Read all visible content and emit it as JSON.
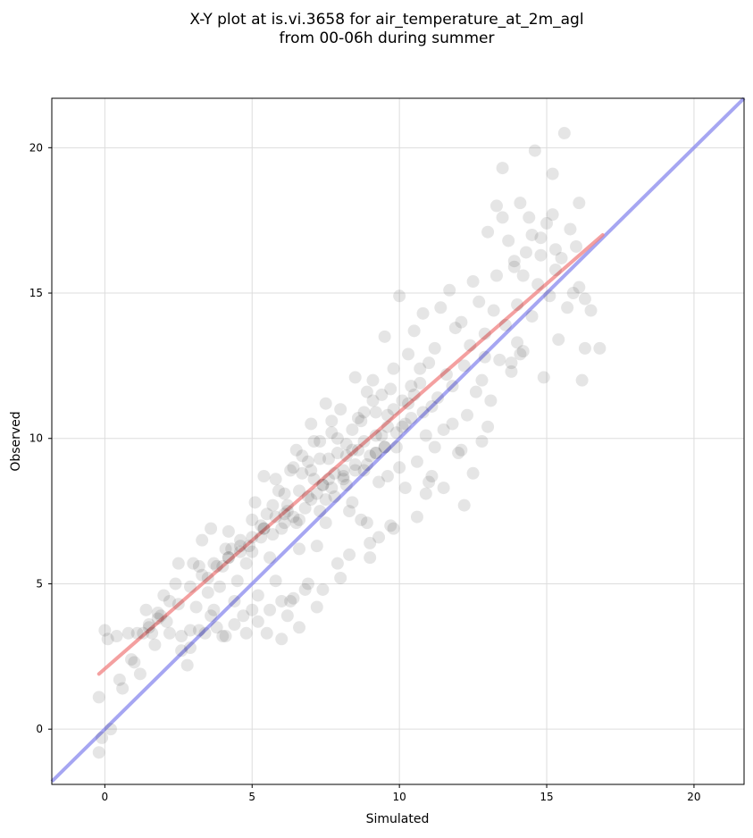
{
  "chart_data": {
    "type": "scatter",
    "title_line1": "X-Y plot at is.vi.3658 for air_temperature_at_2m_agl",
    "title_line2": "from 00-06h during summer",
    "xlabel": "Simulated",
    "ylabel": "Observed",
    "xlim": [
      -1.8,
      21.7
    ],
    "ylim": [
      -1.9,
      21.7
    ],
    "xticks": [
      0,
      5,
      10,
      15,
      20
    ],
    "yticks": [
      0,
      5,
      10,
      15,
      20
    ],
    "xtick_labels": [
      "0",
      "5",
      "10",
      "15",
      "20"
    ],
    "ytick_labels": [
      "0",
      "5",
      "10",
      "15",
      "20"
    ],
    "grid": true,
    "legend": "none",
    "colors": {
      "points": "#000000",
      "fit_line": "#f08080",
      "identity_line": "#8888ee",
      "grid": "#dddddd"
    },
    "series": [
      {
        "kind": "points",
        "x": [
          -0.2,
          -0.2,
          -0.1,
          0.0,
          0.1,
          0.2,
          0.4,
          0.5,
          0.6,
          0.8,
          0.9,
          1.0,
          1.1,
          1.2,
          1.3,
          1.4,
          1.5,
          1.6,
          1.7,
          1.8,
          1.9,
          2.0,
          2.1,
          2.2,
          2.4,
          2.5,
          2.6,
          2.8,
          2.9,
          3.0,
          3.1,
          3.2,
          3.3,
          3.4,
          3.5,
          3.6,
          3.7,
          3.8,
          3.9,
          4.0,
          4.1,
          4.2,
          4.3,
          4.4,
          4.5,
          4.6,
          4.7,
          4.8,
          4.9,
          5.0,
          5.0,
          5.1,
          5.2,
          5.3,
          5.4,
          5.5,
          5.5,
          5.6,
          5.7,
          5.8,
          5.9,
          6.0,
          6.0,
          6.1,
          6.2,
          6.3,
          6.3,
          6.4,
          6.5,
          6.6,
          6.7,
          6.8,
          6.9,
          7.0,
          7.0,
          7.1,
          7.2,
          7.3,
          7.4,
          7.5,
          7.5,
          7.6,
          7.7,
          7.8,
          7.9,
          8.0,
          8.0,
          8.1,
          8.2,
          8.3,
          8.4,
          8.5,
          8.5,
          8.6,
          8.7,
          8.8,
          8.9,
          9.0,
          9.0,
          9.1,
          9.2,
          9.3,
          9.4,
          9.5,
          9.5,
          9.6,
          9.7,
          9.8,
          9.9,
          10.0,
          10.0,
          10.1,
          10.2,
          10.3,
          10.4,
          10.5,
          10.6,
          10.7,
          10.8,
          10.9,
          11.0,
          11.1,
          11.2,
          11.3,
          11.4,
          11.5,
          11.6,
          11.7,
          11.8,
          11.9,
          12.0,
          12.1,
          12.2,
          12.3,
          12.4,
          12.5,
          12.6,
          12.7,
          12.8,
          12.9,
          13.0,
          13.1,
          13.2,
          13.3,
          13.4,
          13.5,
          13.6,
          13.7,
          13.8,
          13.9,
          14.0,
          14.1,
          14.2,
          14.3,
          14.4,
          14.5,
          14.6,
          14.7,
          14.8,
          14.9,
          15.0,
          15.1,
          15.2,
          15.3,
          15.4,
          15.5,
          15.6,
          15.7,
          15.8,
          15.9,
          16.0,
          16.1,
          16.2,
          16.3,
          16.5,
          16.8,
          5.8,
          6.1,
          6.4,
          6.7,
          7.1,
          7.4,
          7.7,
          8.1,
          8.4,
          8.7,
          9.1,
          9.4,
          9.7,
          10.1,
          10.4,
          10.7,
          11.1,
          6.6,
          7.0,
          7.3,
          7.6,
          7.9,
          8.2,
          8.6,
          8.9,
          9.2,
          9.5,
          9.8,
          10.2,
          10.5,
          10.8,
          6.8,
          7.2,
          7.5,
          7.8,
          8.2,
          8.5,
          8.8,
          9.2,
          9.6,
          9.9,
          10.3,
          5.4,
          5.8,
          6.2,
          6.6,
          6.9,
          7.3,
          7.7,
          8.1,
          8.4,
          8.8,
          9.2,
          9.6,
          4.2,
          4.6,
          5.0,
          5.3,
          5.7,
          6.1,
          6.5,
          3.5,
          3.8,
          4.2,
          4.6,
          5.0,
          5.4,
          2.5,
          2.9,
          3.3,
          3.7,
          4.1,
          1.5,
          1.8,
          2.2,
          13.3,
          13.5,
          13.9,
          14.2,
          14.5,
          14.8,
          15.2,
          15.3,
          16.1,
          16.3,
          14.0,
          13.8,
          12.1,
          11.8,
          12.5,
          11.2,
          10.9,
          12.8,
          12.2,
          11.5,
          13.0,
          12.9,
          14.1,
          9.8,
          10.6,
          11.0,
          9.3,
          8.9,
          9.0,
          8.3,
          7.9,
          7.4,
          6.9,
          6.4,
          6.0,
          5.6,
          5.2,
          6.6,
          6.2,
          7.2,
          4.8,
          4.4,
          4.0,
          3.6,
          3.2,
          2.9,
          2.6
        ],
        "y": [
          1.1,
          -0.8,
          -0.3,
          3.4,
          3.1,
          0.0,
          3.2,
          1.7,
          1.4,
          3.3,
          2.4,
          2.3,
          3.3,
          1.9,
          3.3,
          4.1,
          3.5,
          3.3,
          2.9,
          3.8,
          3.9,
          4.6,
          3.7,
          3.3,
          5.0,
          5.7,
          3.2,
          2.2,
          3.4,
          5.7,
          4.2,
          5.6,
          6.5,
          3.3,
          4.7,
          6.9,
          4.1,
          3.5,
          4.9,
          5.6,
          3.2,
          6.8,
          6.2,
          4.4,
          5.1,
          6.1,
          3.9,
          5.7,
          6.3,
          4.1,
          7.2,
          7.8,
          4.6,
          6.6,
          8.7,
          3.3,
          7.4,
          5.9,
          7.7,
          5.1,
          8.2,
          3.1,
          6.9,
          8.1,
          7.5,
          4.4,
          8.9,
          7.3,
          9.6,
          6.2,
          8.8,
          4.8,
          9.2,
          7.9,
          10.5,
          8.6,
          6.3,
          9.9,
          8.4,
          11.2,
          7.1,
          9.3,
          10.6,
          8.0,
          9.5,
          5.2,
          11.0,
          8.7,
          9.8,
          7.5,
          10.3,
          8.9,
          12.1,
          9.6,
          7.2,
          10.9,
          11.6,
          6.4,
          9.4,
          12.0,
          10.1,
          8.5,
          11.5,
          9.7,
          13.5,
          10.8,
          7.0,
          12.4,
          10.2,
          9.0,
          14.9,
          11.3,
          8.3,
          12.9,
          10.7,
          13.7,
          9.2,
          11.9,
          14.3,
          10.1,
          12.6,
          8.7,
          13.1,
          11.4,
          14.5,
          10.3,
          12.2,
          15.1,
          11.8,
          13.8,
          9.5,
          14.0,
          12.5,
          10.8,
          13.2,
          15.4,
          11.6,
          14.7,
          12.0,
          13.6,
          17.1,
          11.3,
          14.4,
          15.6,
          12.7,
          19.3,
          13.9,
          16.8,
          12.3,
          15.9,
          14.6,
          18.1,
          13.0,
          16.4,
          17.6,
          14.2,
          19.9,
          15.3,
          16.9,
          12.1,
          17.4,
          14.9,
          19.1,
          15.8,
          13.4,
          16.2,
          20.5,
          14.5,
          17.2,
          15.0,
          16.6,
          18.1,
          12.0,
          13.1,
          14.4,
          13.1,
          8.6,
          7.1,
          9.0,
          9.4,
          9.9,
          8.4,
          10.2,
          8.9,
          9.6,
          10.6,
          11.3,
          10.1,
          11.7,
          10.4,
          11.8,
          12.4,
          11.1,
          8.2,
          8.9,
          9.3,
          8.6,
          10.0,
          9.4,
          10.7,
          9.1,
          10.9,
          9.7,
          11.0,
          10.5,
          11.5,
          10.9,
          7.6,
          8.1,
          7.9,
          8.8,
          8.4,
          9.1,
          9.9,
          9.5,
          10.4,
          9.7,
          11.2,
          6.9,
          7.3,
          7.7,
          7.2,
          8.0,
          7.5,
          8.3,
          8.6,
          7.8,
          8.9,
          9.5,
          8.7,
          5.9,
          6.5,
          6.1,
          7.0,
          6.7,
          7.4,
          7.1,
          5.2,
          5.6,
          5.9,
          6.3,
          6.6,
          6.9,
          4.3,
          4.9,
          5.3,
          5.7,
          6.2,
          3.6,
          4.0,
          4.4,
          18.0,
          17.6,
          16.1,
          15.6,
          17.0,
          16.3,
          17.7,
          16.5,
          15.2,
          14.8,
          13.3,
          12.6,
          9.6,
          10.5,
          8.8,
          9.7,
          8.1,
          9.9,
          7.7,
          8.3,
          10.4,
          12.8,
          12.9,
          6.9,
          7.3,
          8.5,
          6.6,
          7.1,
          5.9,
          6.0,
          5.7,
          4.8,
          5.0,
          4.5,
          4.4,
          4.1,
          3.7,
          3.5,
          3.9,
          4.2,
          3.3,
          3.6,
          3.2,
          3.9,
          3.4,
          2.8,
          2.7
        ]
      },
      {
        "kind": "fit-line",
        "x": [
          -0.2,
          16.9
        ],
        "y": [
          1.9,
          17.0
        ]
      },
      {
        "kind": "identity-line",
        "x": [
          -1.8,
          21.7
        ],
        "y": [
          -1.8,
          21.7
        ]
      }
    ]
  }
}
